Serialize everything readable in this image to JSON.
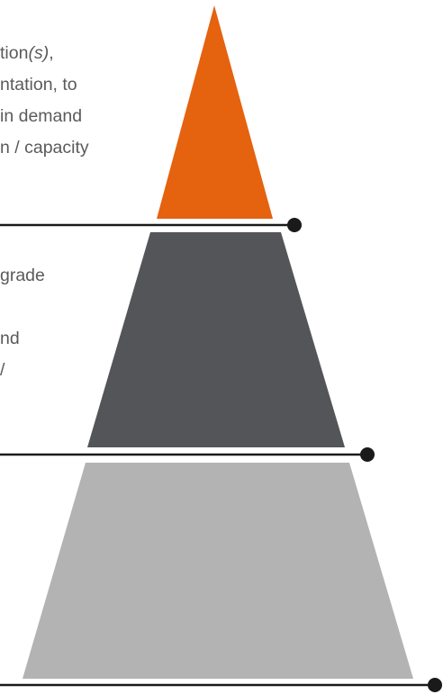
{
  "diagram": {
    "colors": {
      "tier_top": "#e5620f",
      "tier_middle": "#545558",
      "tier_bottom": "#b3b3b3",
      "connector": "#1a1a1a",
      "text": "#5a5a5a"
    },
    "top_text": {
      "line1_plain": "tion",
      "line1_italic": "(s)",
      "line1_tail": ",",
      "line2": "ntation, to",
      "line3": " in demand",
      "line4": "n / capacity"
    },
    "middle_text": {
      "line1": "grade",
      "line2": "",
      "line3": "nd",
      "line4": "/"
    }
  }
}
